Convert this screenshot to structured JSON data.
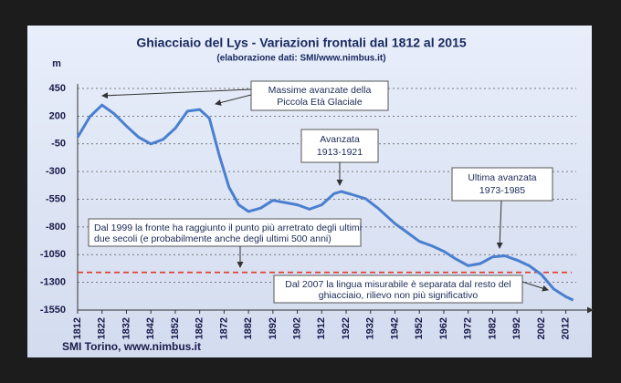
{
  "chart_data": {
    "type": "line",
    "title": "Ghiacciaio del Lys - Variazioni frontali dal 1812 al 2015",
    "subtitle": "(elaborazione dati: SMI/www.nimbus.it)",
    "y_label": "m",
    "footer": "SMI Torino, www.nimbus.it",
    "x": [
      1812,
      1817,
      1822,
      1827,
      1832,
      1837,
      1842,
      1847,
      1852,
      1857,
      1862,
      1866,
      1870,
      1874,
      1878,
      1882,
      1887,
      1892,
      1897,
      1902,
      1907,
      1912,
      1917,
      1920,
      1924,
      1930,
      1935,
      1942,
      1947,
      1952,
      1957,
      1962,
      1967,
      1972,
      1977,
      1982,
      1987,
      1992,
      1997,
      2002,
      2007,
      2012,
      2015
    ],
    "values": [
      10,
      195,
      300,
      220,
      110,
      10,
      -50,
      -10,
      90,
      245,
      260,
      180,
      -150,
      -440,
      -600,
      -660,
      -630,
      -560,
      -580,
      -600,
      -640,
      -600,
      -500,
      -480,
      -505,
      -545,
      -630,
      -770,
      -850,
      -930,
      -970,
      -1020,
      -1090,
      -1150,
      -1130,
      -1070,
      -1060,
      -1100,
      -1150,
      -1230,
      -1360,
      -1430,
      -1460
    ],
    "color": "#4a7fd0",
    "xlim": [
      1812,
      2020
    ],
    "xticks": [
      1812,
      1822,
      1832,
      1842,
      1852,
      1862,
      1872,
      1882,
      1892,
      1902,
      1912,
      1922,
      1932,
      1942,
      1952,
      1962,
      1972,
      1982,
      1992,
      2002,
      2012
    ],
    "ylim": [
      -1550,
      450
    ],
    "yticks": [
      450,
      200,
      -50,
      -300,
      -550,
      -800,
      -1050,
      -1300,
      -1550
    ],
    "grid": true,
    "reference_line": {
      "value": -1210,
      "color": "#e03828"
    },
    "annotations": [
      {
        "lines": [
          "Massime avanzate della",
          "Piccola Età Glaciale"
        ]
      },
      {
        "lines": [
          "Avanzata",
          "1913-1921"
        ]
      },
      {
        "lines": [
          "Ultima avanzata",
          "1973-1985"
        ]
      },
      {
        "lines": [
          "Dal 1999 la fronte ha raggiunto il punto più arretrato degli ultimi",
          "due secoli (e probabilmente anche degli ultimi 500 anni)"
        ]
      },
      {
        "lines": [
          "Dal 2007 la lingua misurabile è separata dal resto del",
          "ghiacciaio, rilievo non più significativo"
        ]
      }
    ]
  }
}
